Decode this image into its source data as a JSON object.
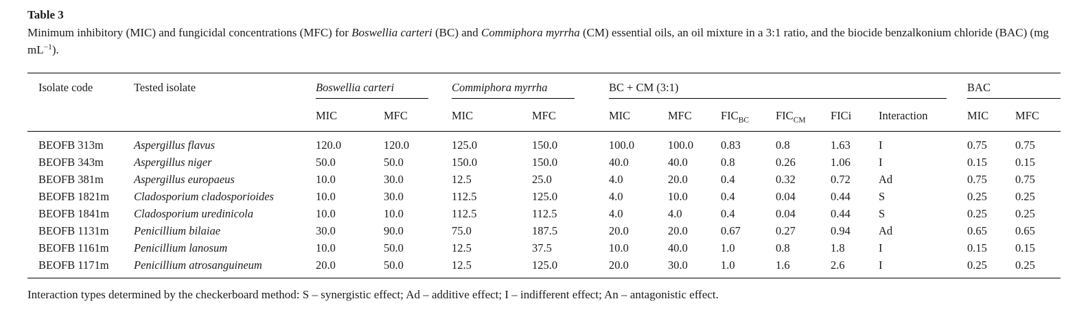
{
  "title": "Table 3",
  "caption": {
    "seg0": "Minimum inhibitory (MIC) and fungicidal concentrations (MFC) for ",
    "seg1": "Boswellia carteri",
    "seg2": " (BC) and ",
    "seg3": "Commiphora myrrha",
    "seg4": " (CM) essential oils, an oil mixture in a 3:1 ratio, and the biocide benzalkonium chloride (BAC) (mg mL",
    "seg5": "−1",
    "seg6": ")."
  },
  "table": {
    "headers": {
      "isolate_code": "Isolate code",
      "tested_isolate": "Tested isolate",
      "group_bc": "Boswellia carteri",
      "group_cm": "Commiphora myrrha",
      "group_mix": "BC + CM (3:1)",
      "group_bac": "BAC",
      "mic": "MIC",
      "mfc": "MFC",
      "fic_label": "FIC",
      "fic_bc_sub": "BC",
      "fic_cm_sub": "CM",
      "fici": "FICi",
      "interaction": "Interaction"
    },
    "col_names": [
      "isolate-code-cell",
      "tested-isolate-cell",
      "bc-mic-cell",
      "bc-mfc-cell",
      "cm-mic-cell",
      "cm-mfc-cell",
      "mix-mic-cell",
      "mix-mfc-cell",
      "fic-bc-cell",
      "fic-cm-cell",
      "fici-cell",
      "interaction-cell",
      "bac-mic-cell",
      "bac-mfc-cell"
    ],
    "rows": [
      [
        "BEOFB 313m",
        "Aspergillus flavus",
        "120.0",
        "120.0",
        "125.0",
        "150.0",
        "100.0",
        "100.0",
        "0.83",
        "0.8",
        "1.63",
        "I",
        "0.75",
        "0.75"
      ],
      [
        "BEOFB 343m",
        "Aspergillus niger",
        "50.0",
        "50.0",
        "150.0",
        "150.0",
        "40.0",
        "40.0",
        "0.8",
        "0.26",
        "1.06",
        "I",
        "0.15",
        "0.15"
      ],
      [
        "BEOFB 381m",
        "Aspergillus europaeus",
        "10.0",
        "30.0",
        "12.5",
        "25.0",
        "4.0",
        "20.0",
        "0.4",
        "0.32",
        "0.72",
        "Ad",
        "0.75",
        "0.75"
      ],
      [
        "BEOFB 1821m",
        "Cladosporium cladosporioides",
        "10.0",
        "30.0",
        "112.5",
        "125.0",
        "4.0",
        "10.0",
        "0.4",
        "0.04",
        "0.44",
        "S",
        "0.25",
        "0.25"
      ],
      [
        "BEOFB 1841m",
        "Cladosporium uredinicola",
        "10.0",
        "10.0",
        "112.5",
        "112.5",
        "4.0",
        "4.0",
        "0.4",
        "0.04",
        "0.44",
        "S",
        "0.25",
        "0.25"
      ],
      [
        "BEOFB 1131m",
        "Penicillium bilaiae",
        "30.0",
        "90.0",
        "75.0",
        "187.5",
        "20.0",
        "20.0",
        "0.67",
        "0.27",
        "0.94",
        "Ad",
        "0.65",
        "0.65"
      ],
      [
        "BEOFB 1161m",
        "Penicillium lanosum",
        "10.0",
        "50.0",
        "12.5",
        "37.5",
        "10.0",
        "40.0",
        "1.0",
        "0.8",
        "1.8",
        "I",
        "0.15",
        "0.15"
      ],
      [
        "BEOFB 1171m",
        "Penicillium atrosanguineum",
        "20.0",
        "50.0",
        "12.5",
        "125.0",
        "20.0",
        "30.0",
        "1.0",
        "1.6",
        "2.6",
        "I",
        "0.25",
        "0.25"
      ]
    ]
  },
  "footnote": "Interaction types determined by the checkerboard method: S – synergistic effect; Ad – additive effect; I – indifferent effect; An – antagonistic effect."
}
